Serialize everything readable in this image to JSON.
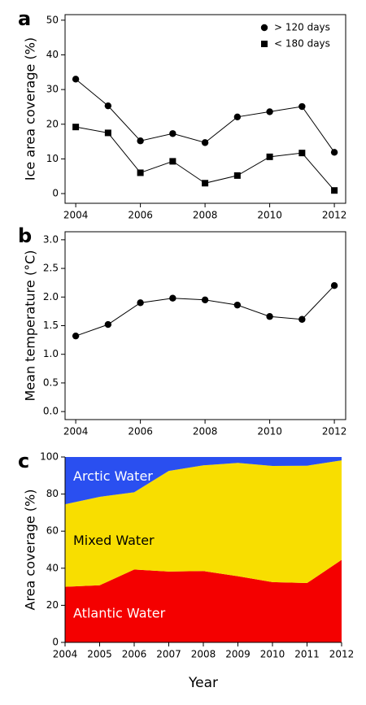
{
  "chart_data": [
    {
      "type": "line",
      "label": "a",
      "y_label": "Ice area coverage (%)",
      "x": [
        2004,
        2005,
        2006,
        2007,
        2008,
        2009,
        2010,
        2011,
        2012
      ],
      "series": [
        {
          "name": "> 120 days",
          "color": "#000000",
          "marker": "circle",
          "values": [
            33,
            25.3,
            15.2,
            17.3,
            14.7,
            22.1,
            23.6,
            25.1,
            11.9
          ]
        },
        {
          "name": "< 180 days",
          "color": "#000000",
          "marker": "square",
          "values": [
            19.2,
            17.5,
            6,
            9.3,
            3,
            5.2,
            10.6,
            11.7,
            0.9
          ]
        }
      ],
      "xlim": [
        2003.67,
        2012.35
      ],
      "xticks": [
        2004,
        2006,
        2008,
        2010,
        2012
      ],
      "ylim": [
        -2.8,
        51.6
      ],
      "yticks": [
        0,
        10,
        20,
        30,
        40,
        50
      ],
      "legend": "upper right"
    },
    {
      "type": "line",
      "label": "b",
      "y_label": "Mean temperature (°C)",
      "x": [
        2004,
        2005,
        2006,
        2007,
        2008,
        2009,
        2010,
        2011,
        2012
      ],
      "series": [
        {
          "color": "#000000",
          "marker": "circle",
          "values": [
            1.32,
            1.52,
            1.9,
            1.98,
            1.95,
            1.86,
            1.66,
            1.61,
            2.2
          ]
        }
      ],
      "xlim": [
        2003.67,
        2012.35
      ],
      "xticks": [
        2004,
        2006,
        2008,
        2010,
        2012
      ],
      "ylim": [
        -0.14,
        3.14
      ],
      "yticks": [
        {
          "value": 0,
          "label": "0.0"
        },
        0.5,
        {
          "value": 1,
          "label": "1.0"
        },
        1.5,
        {
          "value": 2,
          "label": "2.0"
        },
        2.5,
        {
          "value": 3,
          "label": "3.0"
        }
      ]
    },
    {
      "type": "area",
      "label": "c",
      "y_label": "Area coverage (%)",
      "x_label": "Year",
      "stacked": true,
      "x": [
        2004,
        2005,
        2006,
        2007,
        2008,
        2009,
        2010,
        2011,
        2012
      ],
      "series": [
        {
          "name": "Atlantic Water",
          "color": "#f40000",
          "label_color": "#ffffff",
          "values": [
            30,
            30.8,
            39.3,
            38.2,
            38.5,
            35.7,
            32.5,
            32,
            44.5
          ]
        },
        {
          "name": "Mixed Water",
          "color": "#f8de00",
          "label_color": "#000000",
          "values": [
            44.5,
            47.7,
            41.7,
            54.3,
            57,
            61.1,
            62.7,
            63.3,
            53.7
          ]
        },
        {
          "name": "Arctic Water",
          "color": "#2a4ff0",
          "label_color": "#ffffff",
          "values": [
            25.5,
            21.5,
            19,
            7.5,
            4.5,
            3.2,
            4.8,
            4.7,
            1.8
          ]
        }
      ],
      "xlim": [
        2004,
        2012
      ],
      "xticks": [
        2004,
        2005,
        2006,
        2007,
        2008,
        2009,
        2010,
        2011,
        2012
      ],
      "ylim": [
        0,
        100
      ],
      "yticks": [
        0,
        20,
        40,
        60,
        80,
        100
      ]
    }
  ]
}
